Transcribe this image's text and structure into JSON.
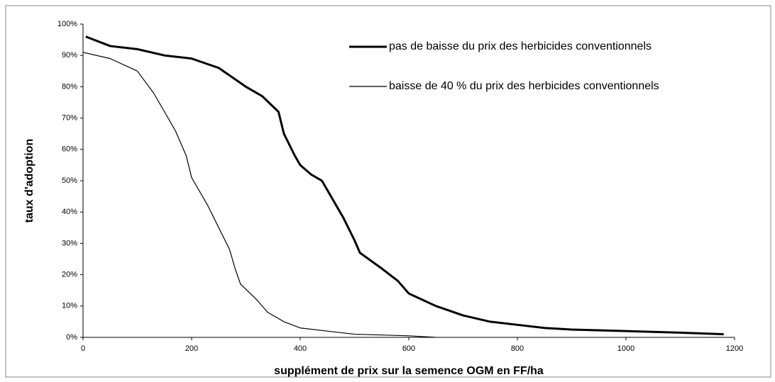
{
  "chart_data": {
    "type": "line",
    "xlabel": "supplément de prix sur la semence OGM en FF/ha",
    "ylabel": "taux d'adoption",
    "xlim": [
      0,
      1200
    ],
    "xticks": [
      0,
      200,
      400,
      600,
      800,
      1000,
      1200
    ],
    "ylim": [
      0,
      100
    ],
    "yticks": [
      {
        "value": 0,
        "label": "0%"
      },
      {
        "value": 10,
        "label": "10%"
      },
      {
        "value": 20,
        "label": "20%"
      },
      {
        "value": 30,
        "label": "30%"
      },
      {
        "value": 40,
        "label": "40%"
      },
      {
        "value": 50,
        "label": "50%"
      },
      {
        "value": 60,
        "label": "60%"
      },
      {
        "value": 70,
        "label": "70%"
      },
      {
        "value": 80,
        "label": "80%"
      },
      {
        "value": 90,
        "label": "90%"
      },
      {
        "value": 100,
        "label": "100%"
      }
    ],
    "series": [
      {
        "name": "pas de baisse du prix des herbicides conventionnels",
        "color": "#000000",
        "width": 3,
        "x": [
          5,
          50,
          100,
          150,
          200,
          250,
          300,
          330,
          360,
          370,
          390,
          400,
          420,
          440,
          460,
          480,
          500,
          510,
          550,
          580,
          600,
          650,
          700,
          750,
          800,
          850,
          900,
          1000,
          1100,
          1180
        ],
        "values": [
          96,
          93,
          92,
          90,
          89,
          86,
          80,
          77,
          72,
          65,
          58,
          55,
          52,
          50,
          44,
          38,
          31,
          27,
          22,
          18,
          14,
          10,
          7,
          5,
          4,
          3,
          2.5,
          2,
          1.5,
          1
        ]
      },
      {
        "name": "baisse de 40 % du prix des herbicides conventionnels",
        "color": "#000000",
        "width": 1.2,
        "x": [
          0,
          50,
          100,
          130,
          150,
          170,
          190,
          200,
          230,
          250,
          270,
          280,
          290,
          320,
          340,
          370,
          400,
          450,
          500,
          600,
          650
        ],
        "values": [
          91,
          89,
          85,
          78,
          72,
          66,
          58,
          51,
          42,
          35,
          28,
          22,
          17,
          12,
          8,
          5,
          3,
          2,
          1,
          0.5,
          0
        ]
      }
    ]
  }
}
